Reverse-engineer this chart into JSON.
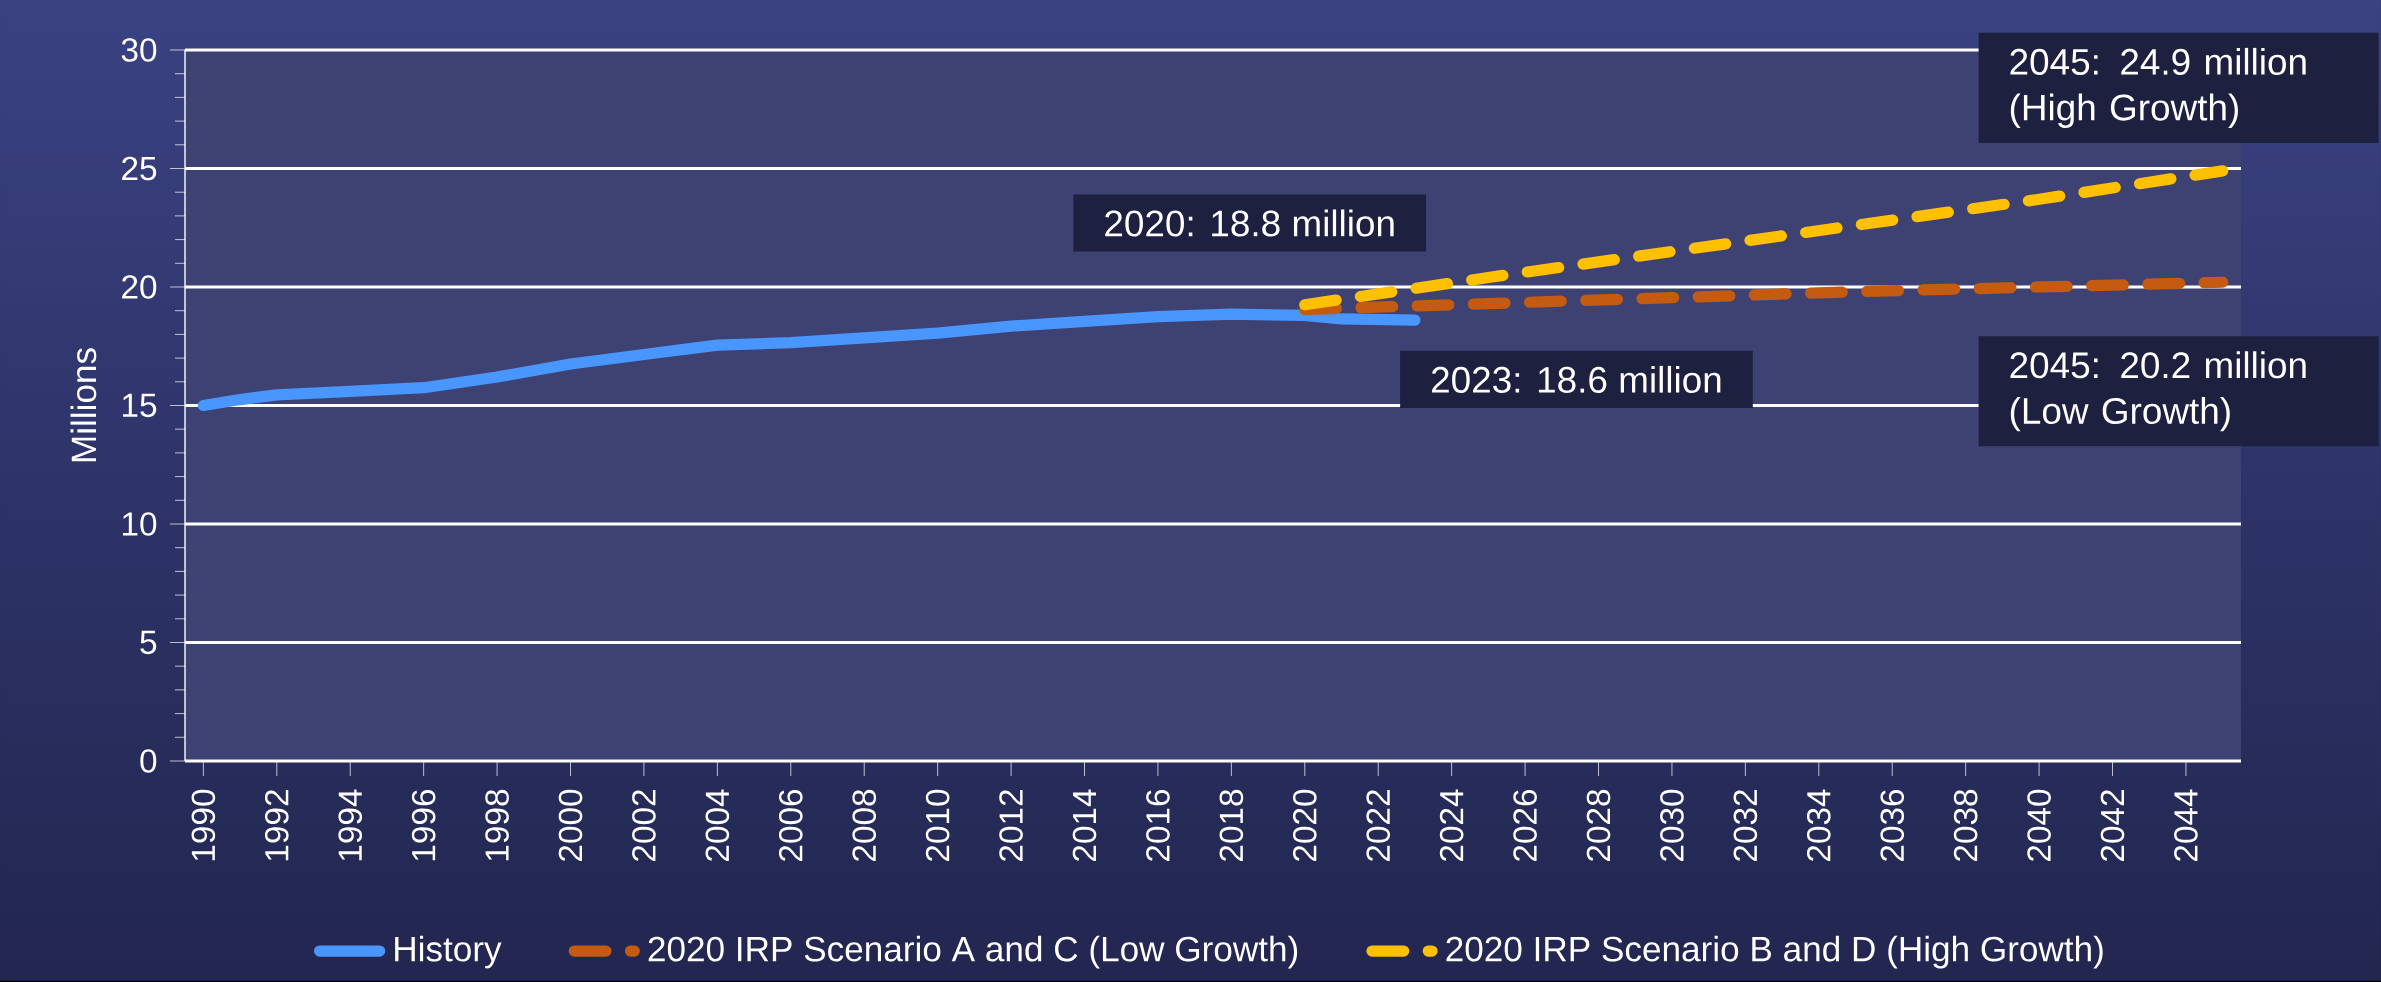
{
  "chart_data": {
    "type": "line",
    "ylabel": "Millions",
    "xlim": [
      1989.5,
      2045.5
    ],
    "ylim": [
      0,
      30
    ],
    "xticks": [
      1990,
      1992,
      1994,
      1996,
      1998,
      2000,
      2002,
      2004,
      2006,
      2008,
      2010,
      2012,
      2014,
      2016,
      2018,
      2020,
      2022,
      2024,
      2026,
      2028,
      2030,
      2032,
      2034,
      2036,
      2038,
      2040,
      2042,
      2044
    ],
    "yticks": [
      0,
      5,
      10,
      15,
      20,
      25,
      30
    ],
    "grid": "y",
    "legend": "bottom",
    "series": [
      {
        "name": "History",
        "color": "#4a96ff",
        "line_style": "solid",
        "x": [
          1990,
          1991,
          1992,
          1994,
          1996,
          1998,
          2000,
          2002,
          2004,
          2006,
          2008,
          2010,
          2012,
          2014,
          2016,
          2018,
          2020,
          2021,
          2023
        ],
        "values": [
          15.0,
          15.25,
          15.45,
          15.6,
          15.75,
          16.2,
          16.75,
          17.15,
          17.55,
          17.65,
          17.85,
          18.05,
          18.35,
          18.55,
          18.75,
          18.85,
          18.8,
          18.65,
          18.6
        ]
      },
      {
        "name": "2020 IRP Scenario A and C (Low Growth)",
        "color": "#c55a11",
        "line_style": "dashed",
        "x": [
          2020,
          2025,
          2030,
          2035,
          2040,
          2045
        ],
        "values": [
          19.05,
          19.3,
          19.55,
          19.8,
          20.0,
          20.2
        ]
      },
      {
        "name": "2020 IRP Scenario B and D (High Growth)",
        "color": "#ffc000",
        "line_style": "dashed",
        "x": [
          2020,
          2025,
          2030,
          2035,
          2040,
          2045
        ],
        "values": [
          19.25,
          20.4,
          21.5,
          22.6,
          23.7,
          24.9
        ]
      }
    ],
    "annotations": [
      {
        "text": "2020: 18.8 million",
        "x": 2020,
        "y": 18.8
      },
      {
        "text": "2023: 18.6 million",
        "x": 2023,
        "y": 18.6
      },
      {
        "text": "2045: 24.9 million (High Growth)",
        "x": 2045,
        "y": 24.9
      },
      {
        "text": "2045: 20.2 million (Low Growth)",
        "x": 2045,
        "y": 20.2
      }
    ]
  }
}
